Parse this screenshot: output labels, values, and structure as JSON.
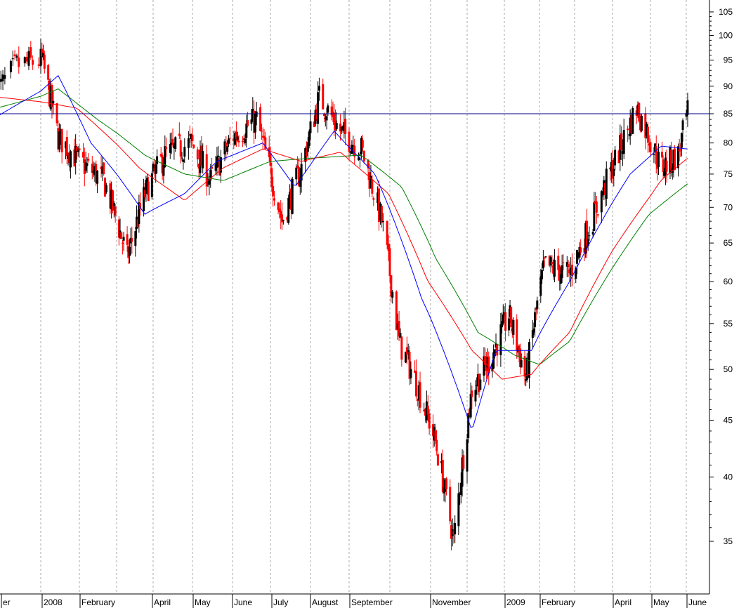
{
  "chart_data": {
    "type": "candlestick",
    "scale": "log",
    "ylim": [
      30,
      108
    ],
    "y_ticks": [
      "35",
      "40",
      "45",
      "50",
      "55",
      "60",
      "65",
      "70",
      "75",
      "80",
      "85",
      "90",
      "95",
      "100",
      "105"
    ],
    "x_labels": [
      "er",
      "2008",
      "February",
      "April",
      "May",
      "June",
      "July",
      "August",
      "September",
      "November",
      "2009",
      "February",
      "April",
      "May",
      "June"
    ],
    "grid": "vertical dashed at month boundaries",
    "horizontal_line": {
      "value": 85,
      "color": "#00008b"
    },
    "colors": {
      "up_candle": "#000000",
      "down_candle": "#ff0000",
      "ma_short": "#0000ff",
      "ma_mid": "#ff0000",
      "ma_long": "#008000"
    },
    "price_path_approx": [
      {
        "date": "2007-12-10",
        "close": 89
      },
      {
        "date": "2007-12-20",
        "close": 94
      },
      {
        "date": "2008-01-02",
        "close": 95
      },
      {
        "date": "2008-01-15",
        "close": 81
      },
      {
        "date": "2008-02-01",
        "close": 77
      },
      {
        "date": "2008-02-20",
        "close": 74
      },
      {
        "date": "2008-03-10",
        "close": 63
      },
      {
        "date": "2008-03-25",
        "close": 72
      },
      {
        "date": "2008-04-10",
        "close": 78
      },
      {
        "date": "2008-04-30",
        "close": 80
      },
      {
        "date": "2008-05-15",
        "close": 74
      },
      {
        "date": "2008-06-01",
        "close": 81
      },
      {
        "date": "2008-06-20",
        "close": 84
      },
      {
        "date": "2008-07-10",
        "close": 68
      },
      {
        "date": "2008-07-25",
        "close": 76
      },
      {
        "date": "2008-08-08",
        "close": 88
      },
      {
        "date": "2008-08-25",
        "close": 82
      },
      {
        "date": "2008-09-10",
        "close": 79
      },
      {
        "date": "2008-09-25",
        "close": 68
      },
      {
        "date": "2008-10-08",
        "close": 53
      },
      {
        "date": "2008-10-20",
        "close": 49
      },
      {
        "date": "2008-11-05",
        "close": 43
      },
      {
        "date": "2008-11-20",
        "close": 35
      },
      {
        "date": "2008-12-05",
        "close": 48
      },
      {
        "date": "2008-12-20",
        "close": 51
      },
      {
        "date": "2009-01-05",
        "close": 56
      },
      {
        "date": "2009-01-20",
        "close": 49
      },
      {
        "date": "2009-02-05",
        "close": 62
      },
      {
        "date": "2009-02-25",
        "close": 61
      },
      {
        "date": "2009-03-15",
        "close": 68
      },
      {
        "date": "2009-04-05",
        "close": 78
      },
      {
        "date": "2009-04-20",
        "close": 86
      },
      {
        "date": "2009-05-10",
        "close": 76
      },
      {
        "date": "2009-05-25",
        "close": 78
      },
      {
        "date": "2009-06-02",
        "close": 85
      }
    ],
    "ma_short_approx": [
      {
        "date": "2007-12-10",
        "value": 84.5
      },
      {
        "date": "2008-01-15",
        "value": 92
      },
      {
        "date": "2008-02-10",
        "value": 80
      },
      {
        "date": "2008-03-25",
        "value": 69
      },
      {
        "date": "2008-04-25",
        "value": 72
      },
      {
        "date": "2008-05-20",
        "value": 77
      },
      {
        "date": "2008-06-25",
        "value": 80
      },
      {
        "date": "2008-07-20",
        "value": 73
      },
      {
        "date": "2008-08-20",
        "value": 82
      },
      {
        "date": "2008-09-20",
        "value": 75
      },
      {
        "date": "2008-10-25",
        "value": 58
      },
      {
        "date": "2008-12-05",
        "value": 44
      },
      {
        "date": "2008-12-25",
        "value": 52
      },
      {
        "date": "2009-01-25",
        "value": 52
      },
      {
        "date": "2009-02-25",
        "value": 60
      },
      {
        "date": "2009-04-15",
        "value": 75
      },
      {
        "date": "2009-05-10",
        "value": 79.5
      },
      {
        "date": "2009-06-02",
        "value": 79
      }
    ],
    "ma_mid_approx": [
      {
        "date": "2007-12-10",
        "value": 88
      },
      {
        "date": "2008-01-30",
        "value": 86
      },
      {
        "date": "2008-03-20",
        "value": 76
      },
      {
        "date": "2008-04-25",
        "value": 71
      },
      {
        "date": "2008-05-25",
        "value": 76
      },
      {
        "date": "2008-06-25",
        "value": 79
      },
      {
        "date": "2008-07-25",
        "value": 77
      },
      {
        "date": "2008-08-25",
        "value": 78.5
      },
      {
        "date": "2008-09-30",
        "value": 72
      },
      {
        "date": "2008-10-30",
        "value": 60
      },
      {
        "date": "2008-12-05",
        "value": 52
      },
      {
        "date": "2008-12-30",
        "value": 49
      },
      {
        "date": "2009-01-25",
        "value": 49.5
      },
      {
        "date": "2009-02-25",
        "value": 54
      },
      {
        "date": "2009-04-01",
        "value": 64
      },
      {
        "date": "2009-05-10",
        "value": 74
      },
      {
        "date": "2009-06-02",
        "value": 77.5
      }
    ],
    "ma_long_approx": [
      {
        "date": "2007-12-10",
        "value": 86
      },
      {
        "date": "2008-01-15",
        "value": 89.5
      },
      {
        "date": "2008-02-15",
        "value": 84
      },
      {
        "date": "2008-03-25",
        "value": 78
      },
      {
        "date": "2008-04-25",
        "value": 75
      },
      {
        "date": "2008-05-25",
        "value": 74
      },
      {
        "date": "2008-07-01",
        "value": 77
      },
      {
        "date": "2008-08-01",
        "value": 77.5
      },
      {
        "date": "2008-09-10",
        "value": 78
      },
      {
        "date": "2008-10-10",
        "value": 73
      },
      {
        "date": "2008-11-05",
        "value": 63
      },
      {
        "date": "2008-12-10",
        "value": 54
      },
      {
        "date": "2009-01-10",
        "value": 51.5
      },
      {
        "date": "2009-02-01",
        "value": 50.5
      },
      {
        "date": "2009-02-25",
        "value": 53
      },
      {
        "date": "2009-03-25",
        "value": 60
      },
      {
        "date": "2009-04-30",
        "value": 69
      },
      {
        "date": "2009-06-02",
        "value": 73.5
      }
    ]
  }
}
